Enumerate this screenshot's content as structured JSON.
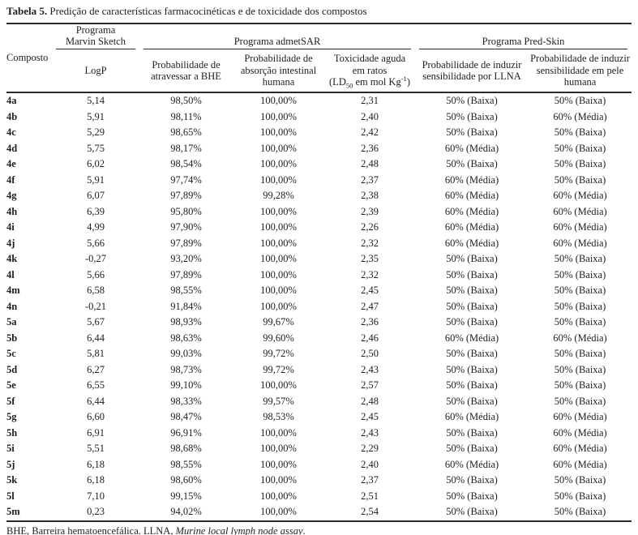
{
  "caption": {
    "label": "Tabela 5.",
    "text": " Predição de características farmacocinéticas e de toxicidade dos compostos"
  },
  "table": {
    "compound_header": "Composto",
    "groups": {
      "marvin_line1": "Programa",
      "marvin_line2": "Marvin Sketch",
      "admetsar": "Programa admetSAR",
      "predskin": "Programa Pred-Skin"
    },
    "subheaders": {
      "logp": "LogP",
      "bhe": "Probabilidade de atravessar a BHE",
      "absorption": "Probabilidade de absorção intestinal humana",
      "toxicity_line1": "Toxicidade aguda",
      "toxicity_line2": "em ratos",
      "toxicity_l3_pre": "(LD",
      "toxicity_l3_sub": "50",
      "toxicity_l3_mid": " em mol Kg",
      "toxicity_l3_sup": "-1",
      "toxicity_l3_post": ")",
      "llna": "Probabilidade de induzir sensibilidade por LLNA",
      "skin": "Probabilidade de induzir sensibilidade em pele humana"
    },
    "rows": [
      [
        "4a",
        "5,14",
        "98,50%",
        "100,00%",
        "2,31",
        "50% (Baixa)",
        "50% (Baixa)"
      ],
      [
        "4b",
        "5,91",
        "98,11%",
        "100,00%",
        "2,40",
        "50% (Baixa)",
        "60% (Média)"
      ],
      [
        "4c",
        "5,29",
        "98,65%",
        "100,00%",
        "2,42",
        "50% (Baixa)",
        "50% (Baixa)"
      ],
      [
        "4d",
        "5,75",
        "98,17%",
        "100,00%",
        "2,36",
        "60% (Média)",
        "50% (Baixa)"
      ],
      [
        "4e",
        "6,02",
        "98,54%",
        "100,00%",
        "2,48",
        "50% (Baixa)",
        "50% (Baixa)"
      ],
      [
        "4f",
        "5,91",
        "97,74%",
        "100,00%",
        "2,37",
        "60% (Média)",
        "50% (Baixa)"
      ],
      [
        "4g",
        "6,07",
        "97,89%",
        "99,28%",
        "2,38",
        "60% (Média)",
        "60% (Média)"
      ],
      [
        "4h",
        "6,39",
        "95,80%",
        "100,00%",
        "2,39",
        "60% (Média)",
        "60% (Média)"
      ],
      [
        "4i",
        "4,99",
        "97,90%",
        "100,00%",
        "2,26",
        "60% (Média)",
        "60% (Média)"
      ],
      [
        "4j",
        "5,66",
        "97,89%",
        "100,00%",
        "2,32",
        "60% (Média)",
        "60% (Média)"
      ],
      [
        "4k",
        "-0,27",
        "93,20%",
        "100,00%",
        "2,35",
        "50% (Baixa)",
        "50% (Baixa)"
      ],
      [
        "4l",
        "5,66",
        "97,89%",
        "100,00%",
        "2,32",
        "50% (Baixa)",
        "50% (Baixa)"
      ],
      [
        "4m",
        "6,58",
        "98,55%",
        "100,00%",
        "2,45",
        "50% (Baixa)",
        "50% (Baixa)"
      ],
      [
        "4n",
        "-0,21",
        "91,84%",
        "100,00%",
        "2,47",
        "50% (Baixa)",
        "50% (Baixa)"
      ],
      [
        "5a",
        "5,67",
        "98,93%",
        "99,67%",
        "2,36",
        "50% (Baixa)",
        "50% (Baixa)"
      ],
      [
        "5b",
        "6,44",
        "98,63%",
        "99,60%",
        "2,46",
        "60% (Média)",
        "60% (Média)"
      ],
      [
        "5c",
        "5,81",
        "99,03%",
        "99,72%",
        "2,50",
        "50% (Baixa)",
        "50% (Baixa)"
      ],
      [
        "5d",
        "6,27",
        "98,73%",
        "99,72%",
        "2,43",
        "50% (Baixa)",
        "50% (Baixa)"
      ],
      [
        "5e",
        "6,55",
        "99,10%",
        "100,00%",
        "2,57",
        "50% (Baixa)",
        "50% (Baixa)"
      ],
      [
        "5f",
        "6,44",
        "98,33%",
        "99,57%",
        "2,48",
        "50% (Baixa)",
        "50% (Baixa)"
      ],
      [
        "5g",
        "6,60",
        "98,47%",
        "98,53%",
        "2,45",
        "60% (Média)",
        "60% (Média)"
      ],
      [
        "5h",
        "6,91",
        "96,91%",
        "100,00%",
        "2,43",
        "50% (Baixa)",
        "60% (Média)"
      ],
      [
        "5i",
        "5,51",
        "98,68%",
        "100,00%",
        "2,29",
        "50% (Baixa)",
        "60% (Média)"
      ],
      [
        "5j",
        "6,18",
        "98,55%",
        "100,00%",
        "2,40",
        "60% (Média)",
        "60% (Média)"
      ],
      [
        "5k",
        "6,18",
        "98,60%",
        "100,00%",
        "2,37",
        "50% (Baixa)",
        "50% (Baixa)"
      ],
      [
        "5l",
        "7,10",
        "99,15%",
        "100,00%",
        "2,51",
        "50% (Baixa)",
        "50% (Baixa)"
      ],
      [
        "5m",
        "0,23",
        "94,02%",
        "100,00%",
        "2,54",
        "50% (Baixa)",
        "50% (Baixa)"
      ]
    ]
  },
  "footnote": {
    "part1": "BHE, Barreira hematoencefálica. LLNA, ",
    "italic": "Murine local lymph node assay",
    "part2": "."
  }
}
